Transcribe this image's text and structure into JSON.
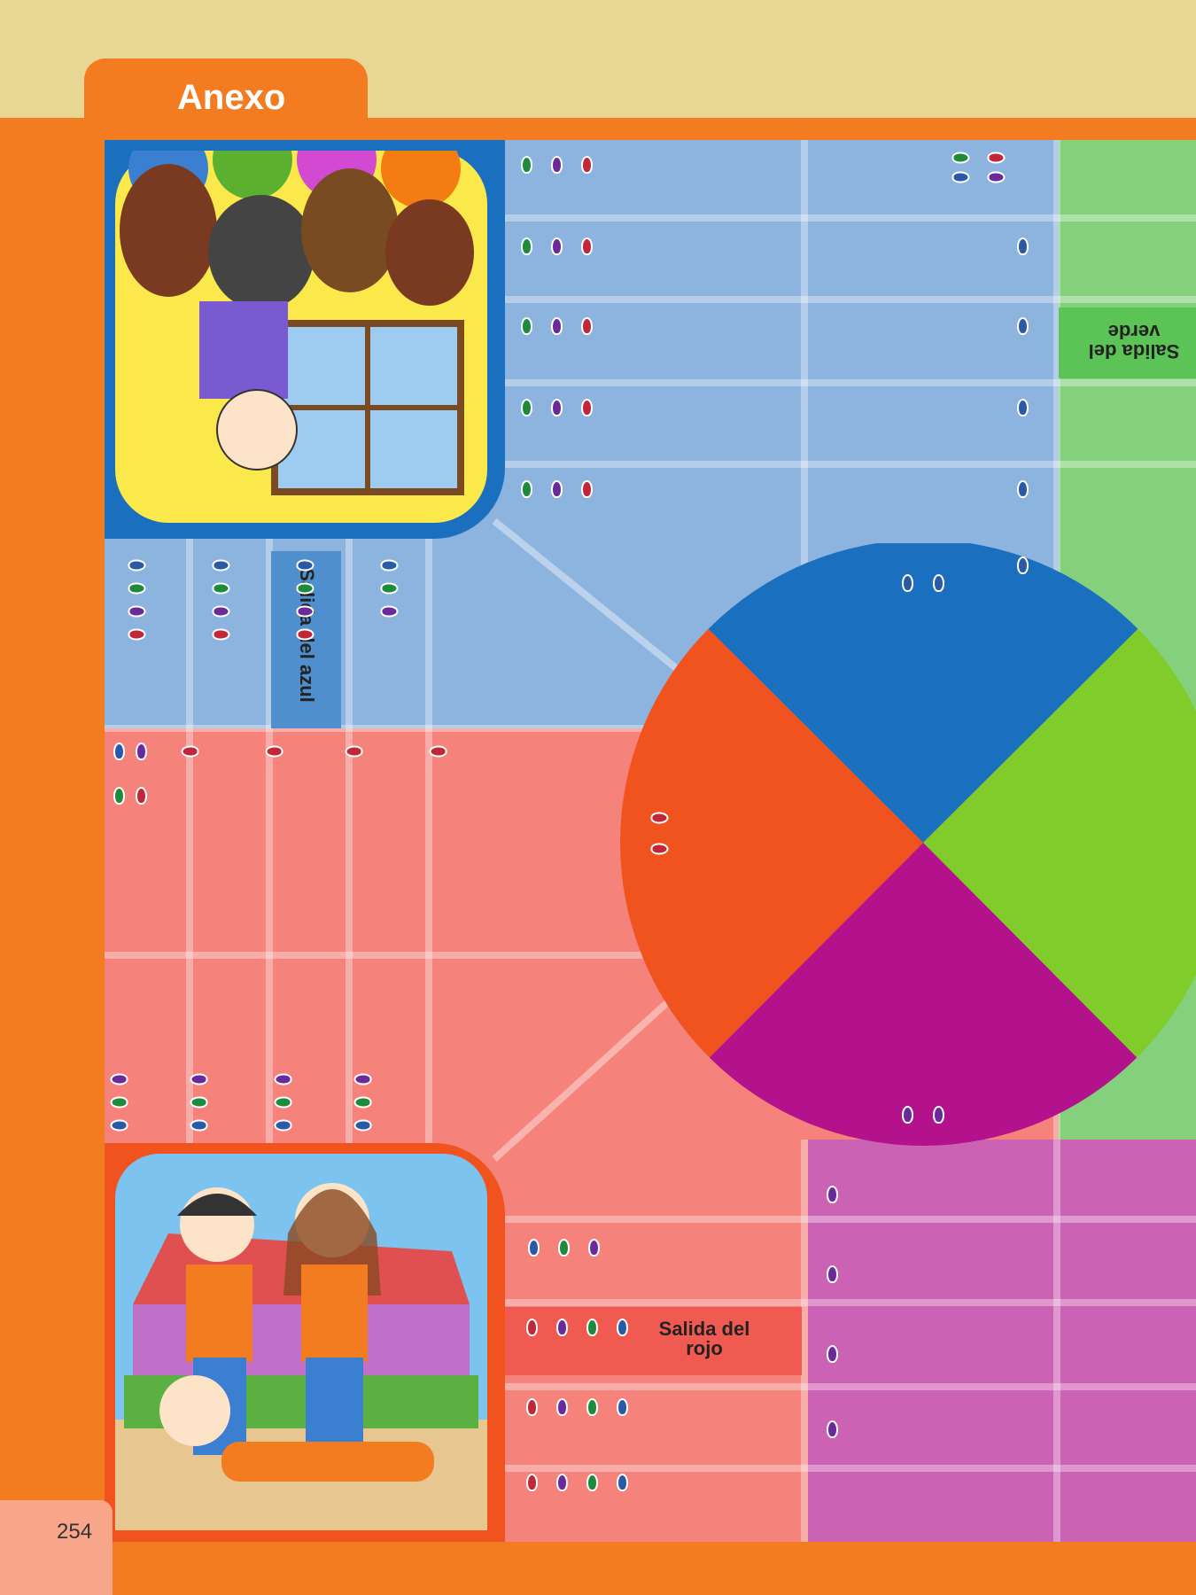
{
  "header": {
    "tab_title": "Anexo"
  },
  "board": {
    "start_blue": "Salida del azul",
    "start_red": "Salida del rojo",
    "start_green": "Salida del verde",
    "colors": {
      "blue": "#1a70be",
      "red": "#f0531e",
      "green": "#80cc2a",
      "purple": "#b3128c"
    },
    "footprint_colors": {
      "green": "#1e8a3c",
      "purple": "#6a2a9a",
      "red": "#c0283a",
      "blue": "#2a5aa6"
    }
  },
  "footer": {
    "page_number": "254"
  }
}
